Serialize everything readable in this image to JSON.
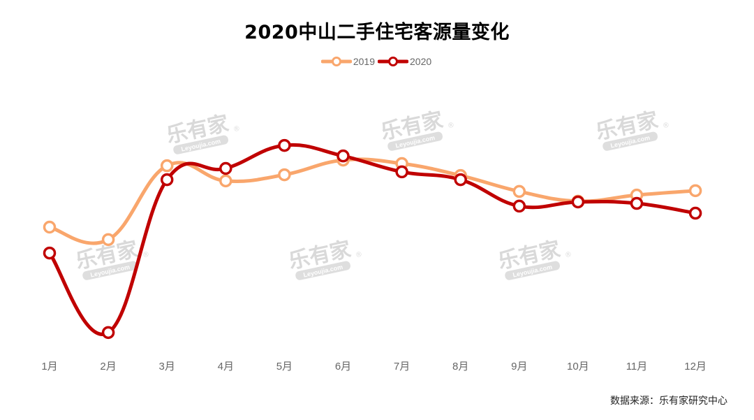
{
  "title": "2020中山二手住宅客源量变化",
  "legend": [
    {
      "label": "2019",
      "color": "#F9A66C"
    },
    {
      "label": "2020",
      "color": "#C00000"
    }
  ],
  "source": "数据来源：乐有家研究中心",
  "watermark": {
    "brand": "乐有家",
    "sub": "Leyoujia.com"
  },
  "chart_data": {
    "type": "line",
    "title": "2020中山二手住宅客源量变化",
    "xlabel": "",
    "ylabel": "",
    "categories": [
      "1月",
      "2月",
      "3月",
      "4月",
      "5月",
      "6月",
      "7月",
      "8月",
      "9月",
      "10月",
      "11月",
      "12月"
    ],
    "series": [
      {
        "name": "2019",
        "color": "#F9A66C",
        "values": [
          50.0,
          44.9,
          75.1,
          68.9,
          71.4,
          77.4,
          76.0,
          71.1,
          64.6,
          60.6,
          63.1,
          64.9
        ]
      },
      {
        "name": "2020",
        "color": "#C00000",
        "values": [
          39.4,
          6.9,
          69.4,
          74.0,
          83.4,
          79.1,
          72.6,
          69.4,
          58.6,
          60.3,
          59.7,
          55.7
        ]
      }
    ],
    "ylim": [
      0,
      100
    ],
    "y_axis_visible": false,
    "grid": false,
    "smooth": true,
    "legend_position": "top-center",
    "note": "No y-axis shown; values are relative estimates read from plotted positions."
  }
}
